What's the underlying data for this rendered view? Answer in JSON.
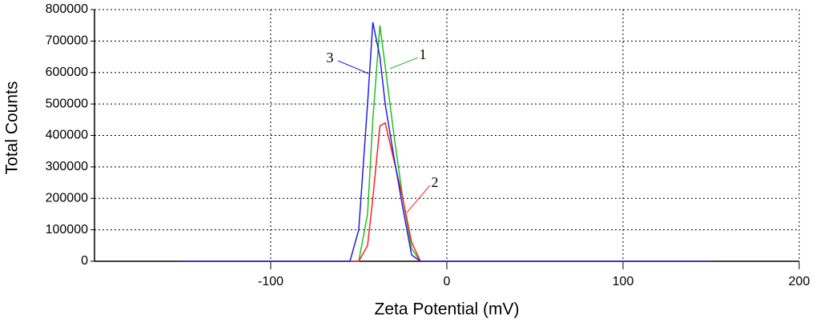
{
  "chart_data": {
    "type": "line",
    "x_label": "Zeta Potential (mV)",
    "y_label": "Total Counts",
    "x": [
      -150,
      -55,
      -50,
      -45,
      -42,
      -38,
      -35,
      -30,
      -25,
      -20,
      -15,
      150
    ],
    "series": [
      {
        "name": "1",
        "color": "#22c022",
        "values": [
          0,
          0,
          0,
          150000,
          450000,
          750000,
          620000,
          400000,
          200000,
          40000,
          0,
          0
        ]
      },
      {
        "name": "2",
        "color": "#ff2020",
        "values": [
          0,
          0,
          0,
          50000,
          200000,
          430000,
          440000,
          320000,
          200000,
          60000,
          0,
          0
        ]
      },
      {
        "name": "3",
        "color": "#2020e0",
        "values": [
          0,
          0,
          100000,
          500000,
          760000,
          650000,
          500000,
          330000,
          170000,
          20000,
          0,
          0
        ]
      }
    ],
    "xlim": [
      -200,
      200
    ],
    "xticks": [
      -100,
      0,
      100,
      200
    ],
    "ylim": [
      0,
      800000
    ],
    "yticks": [
      0,
      100000,
      200000,
      300000,
      400000,
      500000,
      600000,
      700000,
      800000
    ],
    "grid": true
  }
}
